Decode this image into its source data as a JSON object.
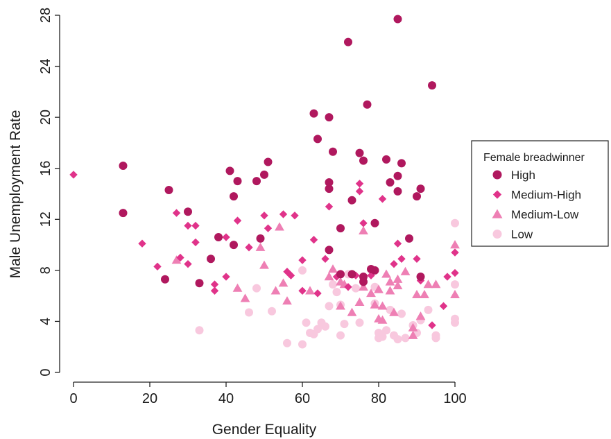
{
  "chart_data": {
    "type": "scatter",
    "title": "",
    "xlabel": "Gender Equality",
    "ylabel": "Male Unemployment Rate",
    "xlim": [
      0,
      100
    ],
    "ylim": [
      0,
      28
    ],
    "x_ticks": [
      0,
      20,
      40,
      60,
      80,
      100
    ],
    "y_ticks": [
      0,
      4,
      8,
      12,
      16,
      20,
      24,
      28
    ],
    "grid": false,
    "legend": {
      "title": "Female breadwinner",
      "placement": "right"
    },
    "series": [
      {
        "name": "High",
        "marker": "circle",
        "color": "#B0185E",
        "points": [
          [
            13,
            16.2
          ],
          [
            13,
            12.5
          ],
          [
            24,
            7.3
          ],
          [
            25,
            14.3
          ],
          [
            30,
            12.6
          ],
          [
            33,
            7.0
          ],
          [
            36,
            8.9
          ],
          [
            38,
            10.6
          ],
          [
            41,
            15.8
          ],
          [
            42,
            13.8
          ],
          [
            42,
            10.0
          ],
          [
            43,
            15.0
          ],
          [
            48,
            15.0
          ],
          [
            49,
            10.5
          ],
          [
            50,
            15.5
          ],
          [
            51,
            16.5
          ],
          [
            63,
            20.3
          ],
          [
            64,
            18.3
          ],
          [
            67,
            20.0
          ],
          [
            67,
            14.9
          ],
          [
            67,
            14.4
          ],
          [
            67,
            9.6
          ],
          [
            68,
            17.3
          ],
          [
            70,
            7.7
          ],
          [
            70,
            11.3
          ],
          [
            72,
            25.9
          ],
          [
            73,
            13.5
          ],
          [
            73,
            7.7
          ],
          [
            75,
            17.2
          ],
          [
            76,
            16.6
          ],
          [
            76,
            7.5
          ],
          [
            76,
            7.1
          ],
          [
            77,
            21.0
          ],
          [
            78,
            8.1
          ],
          [
            79,
            11.7
          ],
          [
            79,
            8.0
          ],
          [
            82,
            16.7
          ],
          [
            83,
            14.9
          ],
          [
            85,
            27.7
          ],
          [
            85,
            15.4
          ],
          [
            85,
            14.2
          ],
          [
            86,
            16.4
          ],
          [
            88,
            10.5
          ],
          [
            90,
            13.8
          ],
          [
            91,
            14.4
          ],
          [
            91,
            7.5
          ],
          [
            94,
            22.5
          ]
        ]
      },
      {
        "name": "Medium-High",
        "marker": "diamond",
        "color": "#E0338A",
        "points": [
          [
            0,
            15.5
          ],
          [
            18,
            10.1
          ],
          [
            22,
            8.3
          ],
          [
            27,
            12.5
          ],
          [
            28,
            9.0
          ],
          [
            30,
            11.5
          ],
          [
            30,
            8.5
          ],
          [
            32,
            11.5
          ],
          [
            32,
            10.2
          ],
          [
            37,
            6.9
          ],
          [
            37,
            6.4
          ],
          [
            40,
            10.6
          ],
          [
            40,
            7.5
          ],
          [
            43,
            11.9
          ],
          [
            46,
            9.8
          ],
          [
            50,
            12.3
          ],
          [
            51,
            11.3
          ],
          [
            55,
            12.4
          ],
          [
            56,
            7.9
          ],
          [
            57,
            7.6
          ],
          [
            58,
            12.3
          ],
          [
            60,
            8.8
          ],
          [
            60,
            6.4
          ],
          [
            63,
            10.4
          ],
          [
            64,
            6.2
          ],
          [
            66,
            8.9
          ],
          [
            67,
            13.0
          ],
          [
            69,
            7.5
          ],
          [
            72,
            6.7
          ],
          [
            74,
            7.6
          ],
          [
            75,
            14.8
          ],
          [
            75,
            14.2
          ],
          [
            76,
            11.7
          ],
          [
            78,
            7.6
          ],
          [
            81,
            13.6
          ],
          [
            84,
            8.5
          ],
          [
            85,
            10.1
          ],
          [
            86,
            8.9
          ],
          [
            90,
            8.9
          ],
          [
            91,
            7.2
          ],
          [
            94,
            3.7
          ],
          [
            97,
            5.2
          ],
          [
            98,
            7.5
          ],
          [
            100,
            9.4
          ],
          [
            100,
            7.8
          ]
        ]
      },
      {
        "name": "Medium-Low",
        "marker": "triangle",
        "color": "#EE7FB4",
        "points": [
          [
            27,
            8.8
          ],
          [
            43,
            6.6
          ],
          [
            45,
            5.8
          ],
          [
            49,
            9.8
          ],
          [
            50,
            8.4
          ],
          [
            53,
            6.4
          ],
          [
            54,
            11.4
          ],
          [
            55,
            7.0
          ],
          [
            56,
            5.6
          ],
          [
            62,
            6.4
          ],
          [
            67,
            7.5
          ],
          [
            68,
            8.1
          ],
          [
            70,
            7.1
          ],
          [
            70,
            5.2
          ],
          [
            71,
            6.9
          ],
          [
            73,
            4.7
          ],
          [
            75,
            5.5
          ],
          [
            76,
            11.1
          ],
          [
            76,
            6.7
          ],
          [
            78,
            6.2
          ],
          [
            79,
            5.3
          ],
          [
            80,
            4.2
          ],
          [
            80,
            6.5
          ],
          [
            81,
            5.2
          ],
          [
            81,
            4.1
          ],
          [
            82,
            7.7
          ],
          [
            83,
            7.1
          ],
          [
            83,
            6.4
          ],
          [
            84,
            4.7
          ],
          [
            85,
            7.3
          ],
          [
            85,
            6.8
          ],
          [
            87,
            7.9
          ],
          [
            89,
            2.9
          ],
          [
            89,
            3.5
          ],
          [
            90,
            6.1
          ],
          [
            91,
            4.4
          ],
          [
            92,
            6.1
          ],
          [
            93,
            6.9
          ],
          [
            95,
            6.9
          ],
          [
            100,
            10.0
          ],
          [
            100,
            6.1
          ]
        ]
      },
      {
        "name": "Low",
        "marker": "circle",
        "color": "#F8C8DE",
        "points": [
          [
            33,
            3.3
          ],
          [
            48,
            6.6
          ],
          [
            46,
            4.7
          ],
          [
            52,
            4.8
          ],
          [
            56,
            2.3
          ],
          [
            60,
            8.0
          ],
          [
            60,
            2.2
          ],
          [
            61,
            3.9
          ],
          [
            62,
            3.1
          ],
          [
            63,
            3.0
          ],
          [
            64,
            3.4
          ],
          [
            65,
            3.9
          ],
          [
            66,
            3.6
          ],
          [
            67,
            5.2
          ],
          [
            68,
            6.9
          ],
          [
            69,
            6.3
          ],
          [
            70,
            5.3
          ],
          [
            70,
            2.9
          ],
          [
            71,
            3.8
          ],
          [
            72,
            7.7
          ],
          [
            74,
            6.6
          ],
          [
            75,
            3.9
          ],
          [
            79,
            6.7
          ],
          [
            79,
            5.4
          ],
          [
            80,
            2.7
          ],
          [
            80,
            3.1
          ],
          [
            81,
            2.8
          ],
          [
            82,
            3.3
          ],
          [
            83,
            4.9
          ],
          [
            84,
            2.9
          ],
          [
            85,
            2.6
          ],
          [
            86,
            4.6
          ],
          [
            87,
            2.7
          ],
          [
            89,
            3.7
          ],
          [
            90,
            3.1
          ],
          [
            91,
            4.1
          ],
          [
            93,
            4.9
          ],
          [
            95,
            2.9
          ],
          [
            95,
            2.7
          ],
          [
            100,
            11.7
          ],
          [
            100,
            6.9
          ],
          [
            100,
            4.2
          ],
          [
            100,
            3.9
          ]
        ]
      }
    ]
  }
}
